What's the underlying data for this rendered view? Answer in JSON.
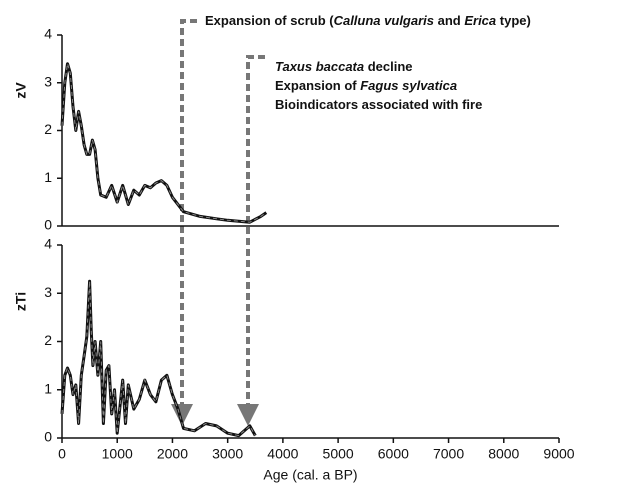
{
  "chart_data": [
    {
      "type": "line",
      "ylabel": "zV",
      "xlim": [
        0,
        9000
      ],
      "ylim": [
        0,
        4
      ],
      "yticks": [
        0,
        1,
        2,
        3,
        4
      ],
      "color": "#111111",
      "x": [
        0,
        50,
        100,
        150,
        200,
        250,
        300,
        350,
        400,
        450,
        500,
        550,
        600,
        650,
        700,
        800,
        900,
        1000,
        1100,
        1200,
        1300,
        1400,
        1500,
        1600,
        1700,
        1800,
        1900,
        2000,
        2200,
        2500,
        2800,
        3000,
        3200,
        3400,
        3600,
        3700
      ],
      "values": [
        2.1,
        3.0,
        3.4,
        3.2,
        2.5,
        2.0,
        2.4,
        2.1,
        1.7,
        1.5,
        1.5,
        1.8,
        1.6,
        1.0,
        0.65,
        0.6,
        0.85,
        0.5,
        0.85,
        0.45,
        0.75,
        0.65,
        0.85,
        0.8,
        0.9,
        0.95,
        0.85,
        0.6,
        0.3,
        0.2,
        0.15,
        0.12,
        0.1,
        0.08,
        0.2,
        0.28
      ]
    },
    {
      "type": "line",
      "ylabel": "zTi",
      "xlabel": "Age (cal. a BP)",
      "xlim": [
        0,
        9000
      ],
      "xticks": [
        0,
        1000,
        2000,
        3000,
        4000,
        5000,
        6000,
        7000,
        8000,
        9000
      ],
      "ylim": [
        0,
        4
      ],
      "yticks": [
        0,
        1,
        2,
        3,
        4
      ],
      "color": "#111111",
      "x": [
        0,
        50,
        100,
        150,
        200,
        250,
        300,
        350,
        400,
        450,
        500,
        530,
        560,
        600,
        650,
        700,
        750,
        800,
        850,
        900,
        950,
        1000,
        1100,
        1150,
        1200,
        1300,
        1400,
        1500,
        1600,
        1700,
        1800,
        1900,
        2000,
        2100,
        2200,
        2400,
        2600,
        2800,
        3000,
        3200,
        3400,
        3500
      ],
      "values": [
        0.5,
        1.3,
        1.45,
        1.3,
        0.9,
        1.1,
        0.3,
        1.3,
        1.7,
        2.1,
        3.25,
        2.2,
        1.5,
        2.0,
        1.3,
        2.0,
        0.3,
        1.4,
        1.5,
        0.5,
        1.0,
        0.1,
        1.2,
        0.3,
        1.1,
        0.6,
        0.8,
        1.2,
        0.9,
        0.75,
        1.2,
        1.3,
        0.9,
        0.6,
        0.2,
        0.15,
        0.3,
        0.25,
        0.1,
        0.05,
        0.25,
        0.05
      ]
    }
  ],
  "annotations": [
    [
      {
        "text": "Expansion of scrub ("
      },
      {
        "text": "Calluna vulgaris",
        "italic": true
      },
      {
        "text": " and "
      },
      {
        "text": "Erica",
        "italic": true
      },
      {
        "text": " type)"
      }
    ],
    [
      {
        "text": "Taxus baccata",
        "italic": true
      },
      {
        "text": " decline"
      }
    ],
    [
      {
        "text": "Expansion of "
      },
      {
        "text": "Fagus sylvatica",
        "italic": true
      }
    ],
    [
      {
        "text": "Bioindicators associated with fire"
      }
    ]
  ]
}
